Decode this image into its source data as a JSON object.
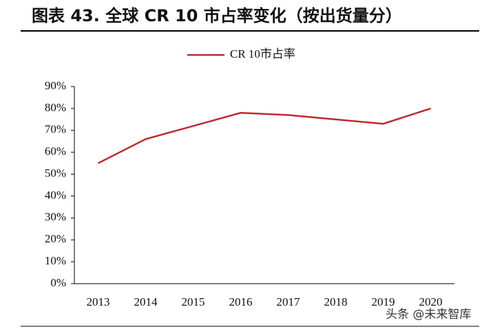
{
  "chart_data": {
    "type": "line",
    "title": "图表 43. 全球 CR 10 市占率变化（按出货量分）",
    "categories": [
      "2013",
      "2014",
      "2015",
      "2016",
      "2017",
      "2018",
      "2019",
      "2020"
    ],
    "series": [
      {
        "name": "CR 10市占率",
        "color": "#c0282e",
        "values": [
          55,
          66,
          72,
          78,
          77,
          75,
          73,
          80
        ]
      }
    ],
    "ylim": [
      0,
      90
    ],
    "yticks": [
      {
        "value": 0,
        "label": "0%"
      },
      {
        "value": 10,
        "label": "10%"
      },
      {
        "value": 20,
        "label": "20%"
      },
      {
        "value": 30,
        "label": "30%"
      },
      {
        "value": 40,
        "label": "40%"
      },
      {
        "value": 50,
        "label": "50%"
      },
      {
        "value": 60,
        "label": "60%"
      },
      {
        "value": 70,
        "label": "70%"
      },
      {
        "value": 80,
        "label": "80%"
      },
      {
        "value": 90,
        "label": "90%"
      }
    ],
    "legend": "top",
    "watermark": "头条 @未来智库"
  }
}
